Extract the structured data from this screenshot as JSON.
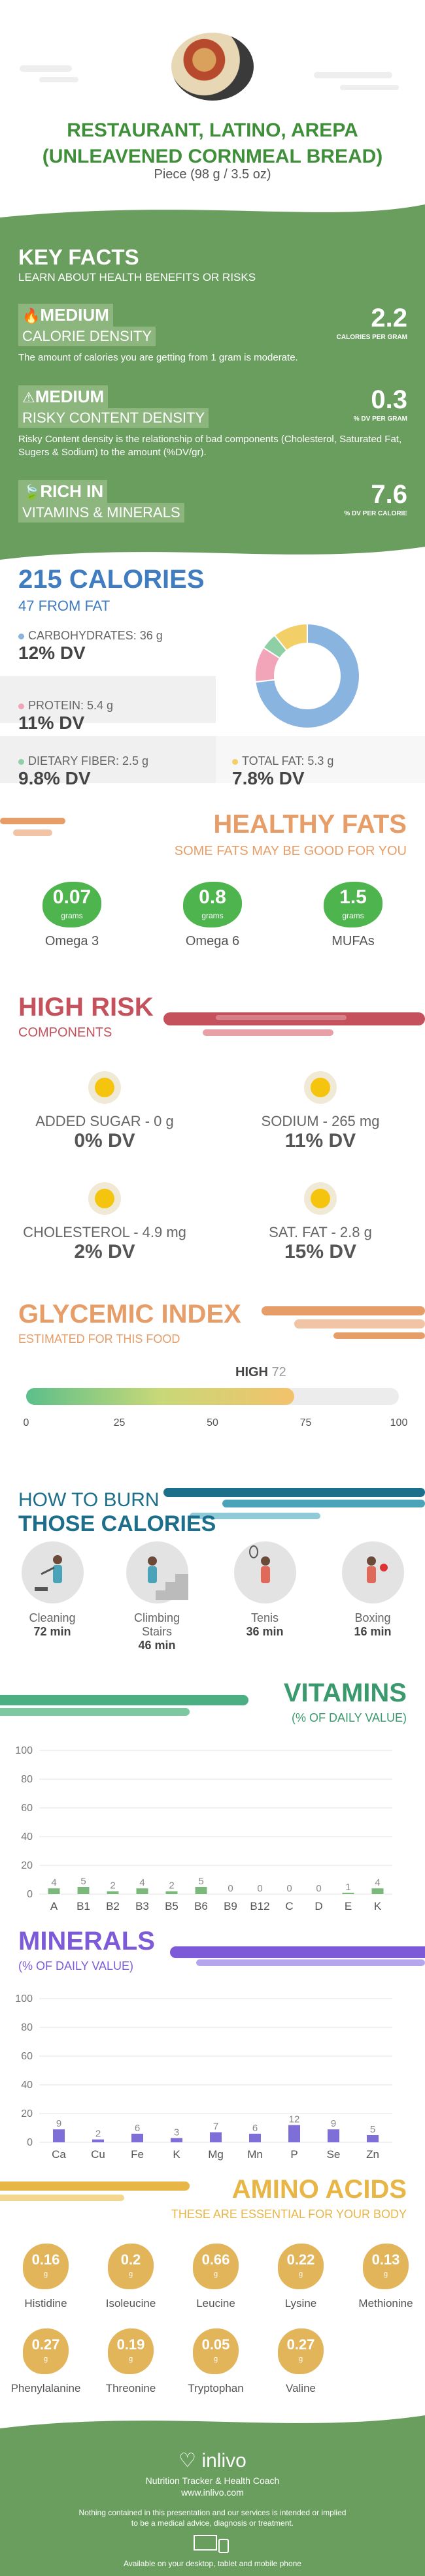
{
  "header": {
    "title_line1": "RESTAURANT, LATINO, AREPA",
    "title_line2": "(UNLEAVENED CORNMEAL BREAD)",
    "serving": "Piece (98 g / 3.5 oz)"
  },
  "key_facts": {
    "title": "KEY FACTS",
    "subtitle": "LEARN ABOUT HEALTH BENEFITS OR RISKS",
    "items": [
      {
        "level": "MEDIUM",
        "name": "CALORIE DENSITY",
        "value": "2.2",
        "unit": "CALORIES PER GRAM",
        "desc": "The amount of calories you are getting from 1 gram is moderate."
      },
      {
        "level": "MEDIUM",
        "name": "RISKY CONTENT DENSITY",
        "value": "0.3",
        "unit": "% DV PER GRAM",
        "desc": "Risky Content density is the relationship of bad components (Cholesterol, Saturated Fat, Sugers & Sodium) to the amount (%DV/gr)."
      },
      {
        "level": "RICH IN",
        "name": "VITAMINS & MINERALS",
        "value": "7.6",
        "unit": "% DV PER CALORIE",
        "desc": ""
      }
    ]
  },
  "calories": {
    "title": "215 CALORIES",
    "subtitle": "47 FROM FAT",
    "macros": [
      {
        "label": "CARBOHYDRATES: 36 g",
        "dv": "12% DV",
        "color": "#8ab4e0"
      },
      {
        "label": "PROTEIN: 5.4 g",
        "dv": "11% DV",
        "color": "#f2a4b8"
      },
      {
        "label": "DIETARY FIBER: 2.5 g",
        "dv": "9.8% DV",
        "color": "#8fcfa6"
      },
      {
        "label": "TOTAL FAT: 5.3 g",
        "dv": "7.8% DV",
        "color": "#f3cf68"
      }
    ],
    "donut": [
      {
        "name": "carbohydrates",
        "value": 36,
        "color": "#8ab4e0"
      },
      {
        "name": "protein",
        "value": 5.4,
        "color": "#f2a4b8"
      },
      {
        "name": "fiber",
        "value": 2.5,
        "color": "#8fcfa6"
      },
      {
        "name": "fat",
        "value": 5.3,
        "color": "#f3cf68"
      }
    ]
  },
  "healthy_fats": {
    "title": "HEALTHY FATS",
    "subtitle": "SOME FATS MAY BE GOOD FOR YOU",
    "items": [
      {
        "value": "0.07",
        "unit": "grams",
        "name": "Omega 3"
      },
      {
        "value": "0.8",
        "unit": "grams",
        "name": "Omega 6"
      },
      {
        "value": "1.5",
        "unit": "grams",
        "name": "MUFAs"
      }
    ]
  },
  "high_risk": {
    "title": "HIGH RISK",
    "subtitle": "COMPONENTS",
    "items": [
      {
        "label": "ADDED SUGAR - 0 g",
        "dv": "0% DV"
      },
      {
        "label": "SODIUM - 265 mg",
        "dv": "11% DV"
      },
      {
        "label": "CHOLESTEROL - 4.9 mg",
        "dv": "2% DV"
      },
      {
        "label": "SAT. FAT - 2.8 g",
        "dv": "15% DV"
      }
    ]
  },
  "glycemic": {
    "title": "GLYCEMIC INDEX",
    "subtitle": "ESTIMATED FOR THIS FOOD",
    "level": "HIGH",
    "value": 72,
    "ticks": [
      "0",
      "25",
      "50",
      "75",
      "100"
    ]
  },
  "burn": {
    "title1": "HOW TO BURN",
    "title2": "THOSE CALORIES",
    "items": [
      {
        "name": "Cleaning",
        "time": "72 min",
        "icon": "cleaning-icon"
      },
      {
        "name": "Climbing Stairs",
        "time": "46 min",
        "icon": "stairs-icon"
      },
      {
        "name": "Tenis",
        "time": "36 min",
        "icon": "tennis-icon"
      },
      {
        "name": "Boxing",
        "time": "16 min",
        "icon": "boxing-icon"
      }
    ]
  },
  "chart_data": [
    {
      "type": "bar",
      "title": "VITAMINS",
      "subtitle": "(% OF DAILY VALUE)",
      "categories": [
        "A",
        "B1",
        "B2",
        "B3",
        "B5",
        "B6",
        "B9",
        "B12",
        "C",
        "D",
        "E",
        "K"
      ],
      "values": [
        4,
        5,
        2,
        4,
        2,
        5,
        0,
        0,
        0,
        0,
        1,
        4
      ],
      "yticks": [
        "0",
        "20",
        "40",
        "60",
        "80",
        "100"
      ],
      "ylim": [
        0,
        100
      ],
      "color": "#7cb87c"
    },
    {
      "type": "bar",
      "title": "MINERALS",
      "subtitle": "(% OF DAILY VALUE)",
      "categories": [
        "Ca",
        "Cu",
        "Fe",
        "K",
        "Mg",
        "Mn",
        "P",
        "Se",
        "Zn"
      ],
      "values": [
        9,
        2,
        6,
        3,
        7,
        6,
        12,
        9,
        5
      ],
      "yticks": [
        "0",
        "20",
        "40",
        "60",
        "80",
        "100"
      ],
      "ylim": [
        0,
        100
      ],
      "color": "#7d6ed8"
    }
  ],
  "amino": {
    "title": "AMINO ACIDS",
    "subtitle": "THESE ARE ESSENTIAL FOR YOUR BODY",
    "items": [
      {
        "value": "0.16",
        "name": "Histidine"
      },
      {
        "value": "0.2",
        "name": "Isoleucine"
      },
      {
        "value": "0.66",
        "name": "Leucine"
      },
      {
        "value": "0.22",
        "name": "Lysine"
      },
      {
        "value": "0.13",
        "name": "Methionine"
      },
      {
        "value": "0.27",
        "name": "Phenylalanine"
      },
      {
        "value": "0.19",
        "name": "Threonine"
      },
      {
        "value": "0.05",
        "name": "Tryptophan"
      },
      {
        "value": "0.27",
        "name": "Valine"
      }
    ],
    "unit": "g"
  },
  "footer": {
    "brand": "inlivo",
    "tagline": "Nutrition Tracker & Health Coach",
    "url": "www.inlivo.com",
    "disclaimer1": "Nothing contained in this presentation and our services is intended or implied",
    "disclaimer2": "to be a medical advice, diagnosis or treatment.",
    "availability": "Available on your desktop, tablet and mobile phone"
  }
}
